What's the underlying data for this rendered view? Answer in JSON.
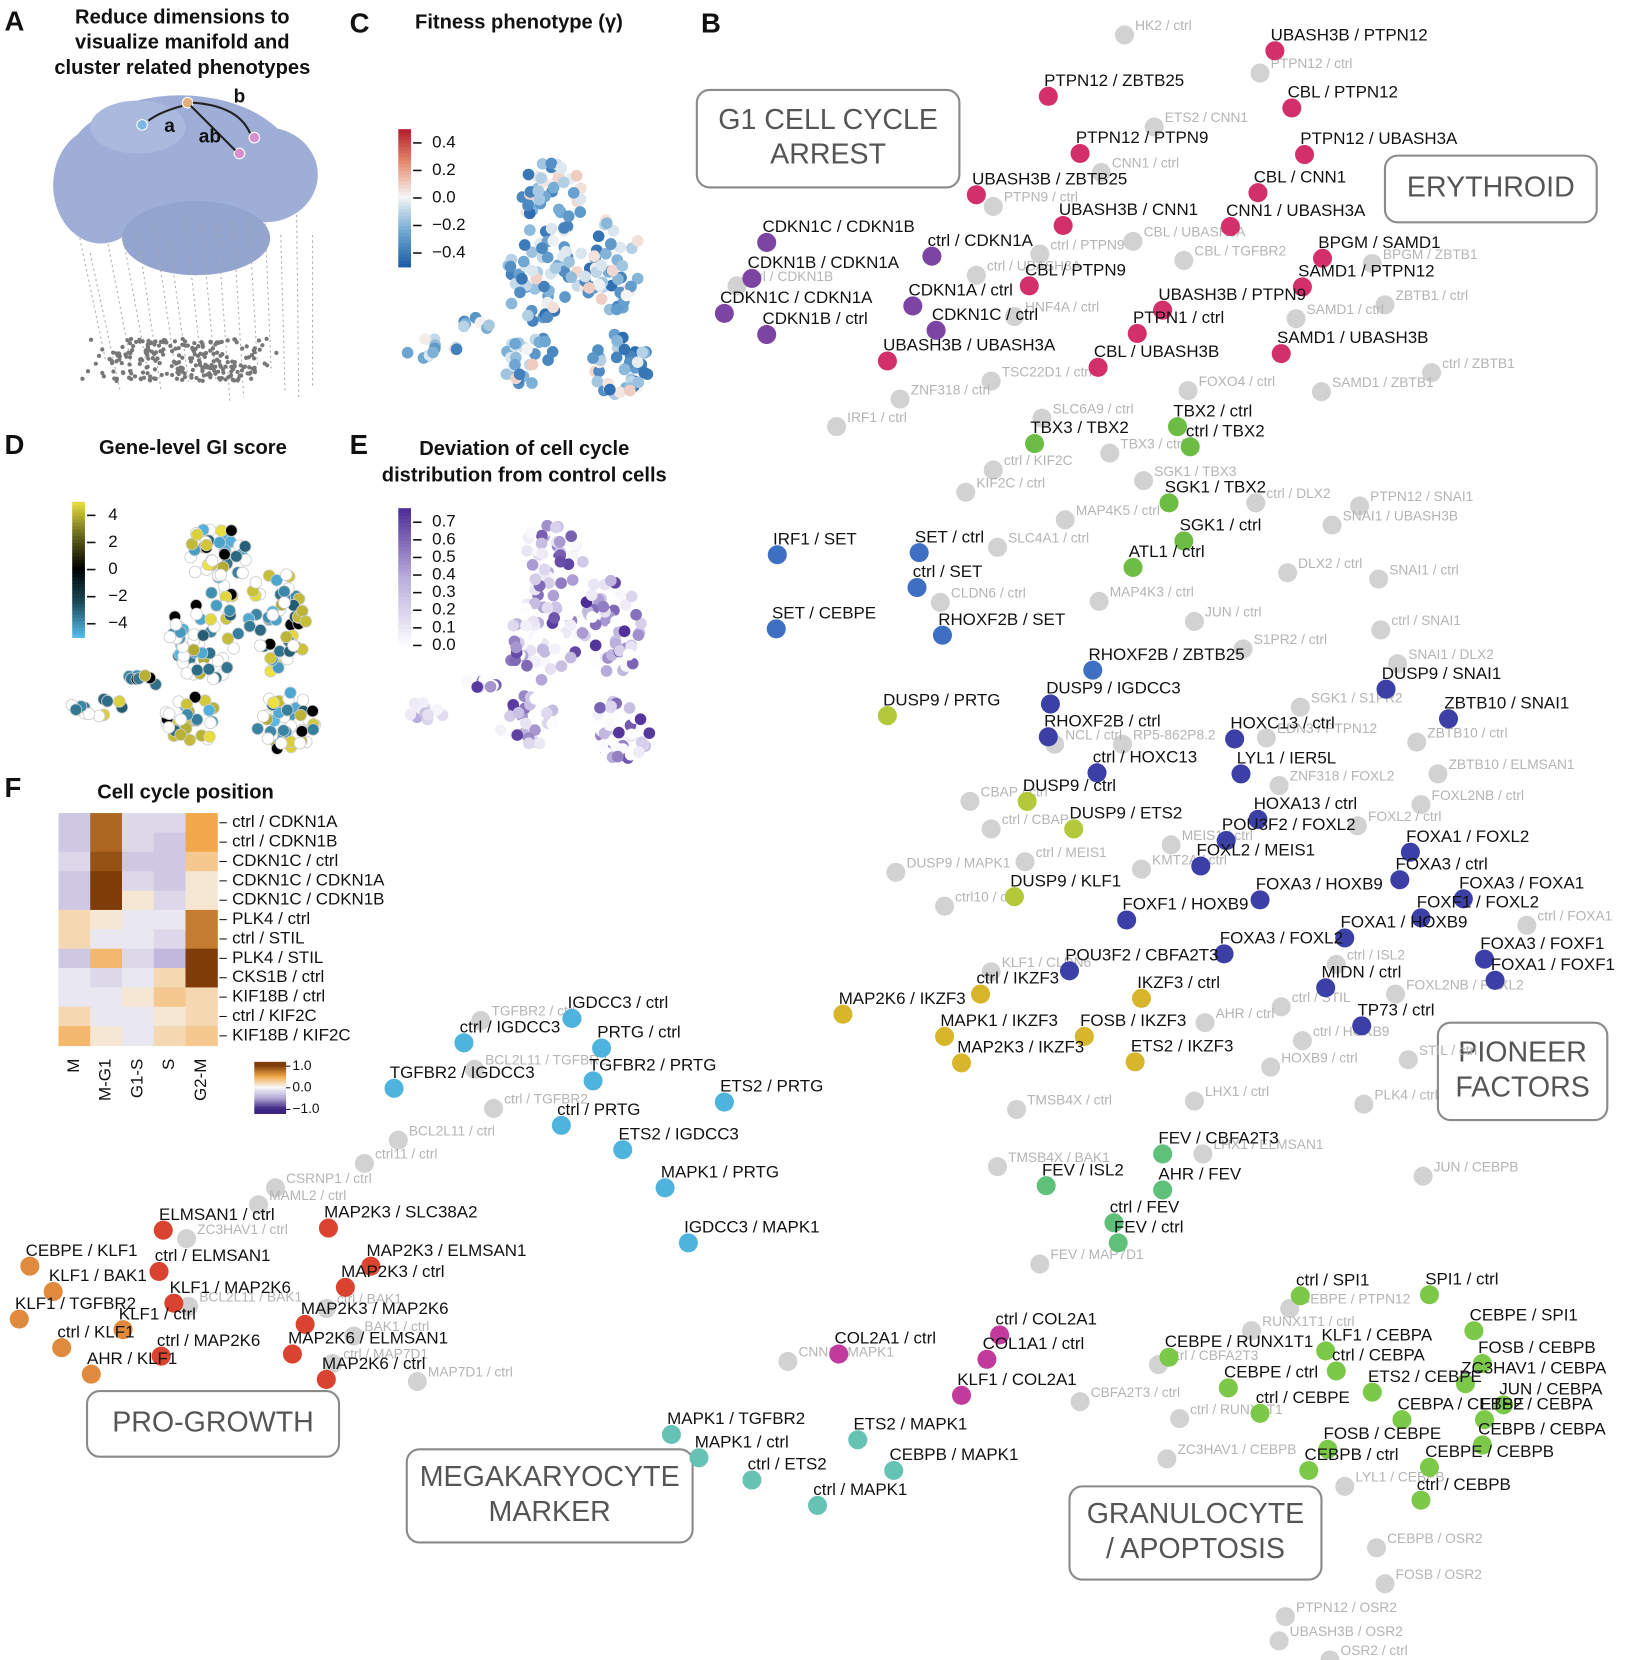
{
  "panels": {
    "A": {
      "letter": "A",
      "title": [
        "Reduce dimensions to",
        "visualize manifold and",
        "cluster related phenotypes"
      ],
      "points": [
        "a",
        "b",
        "ab"
      ]
    },
    "B": {
      "letter": "B",
      "clusters": [
        {
          "lines": [
            "G1 CELL CYCLE",
            "ARREST"
          ]
        },
        {
          "lines": [
            "ERYTHROID"
          ]
        },
        {
          "lines": [
            "PIONEER",
            "FACTORS"
          ]
        },
        {
          "lines": [
            "PRO-GROWTH"
          ]
        },
        {
          "lines": [
            "MEGAKARYOCYTE",
            "MARKER"
          ]
        },
        {
          "lines": [
            "GRANULOCYTE",
            "/ APOPTOSIS"
          ]
        }
      ],
      "groups": [
        {
          "color": "#d3306b",
          "labels": [
            "UBASH3B / PTPN12",
            "PTPN12 / ZBTB25",
            "CBL / PTPN12",
            "PTPN12 / PTPN9",
            "PTPN12 / UBASH3A",
            "UBASH3B / ZBTB25",
            "CBL / CNN1",
            "UBASH3B / CNN1",
            "CNN1 / UBASH3A",
            "BPGM / SAMD1",
            "CBL / PTPN9",
            "SAMD1 / PTPN12",
            "UBASH3B / PTPN9",
            "PTPN1 / ctrl",
            "SAMD1 / UBASH3B",
            "UBASH3B / UBASH3A",
            "CBL / UBASH3B"
          ]
        },
        {
          "color": "#7d45a3",
          "labels": [
            "CDKN1C / CDKN1B",
            "ctrl / CDKN1A",
            "CDKN1B / CDKN1A",
            "CDKN1C / CDKN1A",
            "CDKN1A / ctrl",
            "CDKN1B / ctrl",
            "CDKN1C / ctrl"
          ]
        },
        {
          "color": "#6dbd45",
          "labels": [
            "TBX2 / ctrl",
            "TBX3 / TBX2",
            "ctrl / TBX2",
            "SGK1 / TBX2",
            "SGK1 / ctrl",
            "ATL1 / ctrl"
          ]
        },
        {
          "color": "#3f6fc2",
          "labels": [
            "IRF1 / SET",
            "SET / ctrl",
            "ctrl / SET",
            "SET / CEBPE",
            "RHOXF2B / SET",
            "RHOXF2B / ZBTB25"
          ]
        },
        {
          "color": "#3b3fa6",
          "labels": [
            "DUSP9 / SNAI1",
            "DUSP9 / IGDCC3",
            "ZBTB10 / SNAI1",
            "RHOXF2B / ctrl",
            "HOXC13 / ctrl",
            "ctrl / HOXC13",
            "LYL1 / IER5L",
            "HOXA13 / ctrl",
            "POU3F2 / FOXL2",
            "FOXA1 / FOXL2",
            "FOXL2 / MEIS1",
            "FOXA3 / ctrl",
            "FOXA3 / HOXB9",
            "FOXA3 / FOXA1",
            "FOXF1 / HOXB9",
            "FOXF1 / FOXL2",
            "FOXA1 / HOXB9",
            "FOXA3 / FOXL2",
            "FOXA3 / FOXF1",
            "POU3F2 / CBFA2T3",
            "MIDN / ctrl",
            "FOXA1 / FOXF1",
            "TP73 / ctrl"
          ]
        },
        {
          "color": "#b3c93a",
          "labels": [
            "DUSP9 / PRTG",
            "DUSP9 / ctrl",
            "DUSP9 / ETS2",
            "DUSP9 / KLF1"
          ]
        },
        {
          "color": "#d8b62c",
          "labels": [
            "ctrl / IKZF3",
            "IKZF3 / ctrl",
            "MAP2K6 / IKZF3",
            "MAPK1 / IKZF3",
            "FOSB / IKZF3",
            "MAP2K3 / IKZF3",
            "ETS2 / IKZF3"
          ]
        },
        {
          "color": "#5fc07a",
          "labels": [
            "FEV / CBFA2T3",
            "FEV / ISL2",
            "AHR / FEV",
            "ctrl / FEV",
            "FEV / ctrl"
          ]
        },
        {
          "color": "#4fb4dd",
          "labels": [
            "IGDCC3 / ctrl",
            "ctrl / IGDCC3",
            "PRTG / ctrl",
            "TGFBR2 / PRTG",
            "TGFBR2 / IGDCC3",
            "ETS2 / PRTG",
            "ctrl / PRTG",
            "ETS2 / IGDCC3",
            "MAPK1 / PRTG",
            "IGDCC3 / MAPK1"
          ]
        },
        {
          "color": "#e08a3e",
          "labels": [
            "CEBPE / KLF1",
            "KLF1 / BAK1",
            "KLF1 / TGFBR2",
            "KLF1 / ctrl",
            "ctrl / KLF1",
            "AHR / KLF1"
          ]
        },
        {
          "color": "#d9432f",
          "labels": [
            "ELMSAN1 / ctrl",
            "MAP2K3 / SLC38A2",
            "MAP2K3 / ELMSAN1",
            "ctrl / ELMSAN1",
            "MAP2K3 / ctrl",
            "KLF1 / MAP2K6",
            "MAP2K3 / MAP2K6",
            "ctrl / MAP2K6",
            "MAP2K6 / ELMSAN1",
            "MAP2K6 / ctrl"
          ]
        },
        {
          "color": "#c23a9c",
          "labels": [
            "ctrl / COL2A1",
            "COL2A1 / ctrl",
            "COL1A1 / ctrl",
            "KLF1 / COL2A1"
          ]
        },
        {
          "color": "#66c3b3",
          "labels": [
            "MAPK1 / TGFBR2",
            "ETS2 / MAPK1",
            "MAPK1 / ctrl",
            "CEBPB / MAPK1",
            "ctrl / ETS2",
            "ctrl / MAPK1"
          ]
        },
        {
          "color": "#7cc94a",
          "labels": [
            "ctrl / SPI1",
            "SPI1 / ctrl",
            "CEBPE / SPI1",
            "CEBPE / RUNX1T1",
            "KLF1 / CEBPA",
            "FOSB / CEBPB",
            "ctrl / CEBPA",
            "ZC3HAV1 / CEBPA",
            "CEBPE / ctrl",
            "ETS2 / CEBPE",
            "JUN / CEBPA",
            "ctrl / CEBPE",
            "CEBPA / CEBPE",
            "ETS2 / CEBPA",
            "FOSB / CEBPE",
            "CEBPB / CEBPA",
            "CEBPB / ctrl",
            "CEBPE / CEBPB",
            "ctrl / CEBPB"
          ]
        }
      ],
      "gray_color": "#d2d2d2",
      "gray_labels": [
        "HK2 / ctrl",
        "PTPN12 / ctrl",
        "ETS2 / CNN1",
        "CNN1 / ctrl",
        "PTPN9 / ctrl",
        "CBL / UBASH3A",
        "CBL / TGFBR2",
        "BPGM / ZBTB1",
        "ctrl / UBASH3A",
        "ctrl / CDKN1B",
        "ZBTB1 / ctrl",
        "SAMD1 / ctrl",
        "HNF4A / ctrl",
        "ctrl / ZBTB1",
        "TSC22D1 / ctrl",
        "FOXO4 / ctrl",
        "SAMD1 / ZBTB1",
        "ZNF318 / ctrl",
        "SLC6A9 / ctrl",
        "IRF1 / ctrl",
        "TBX3 / ctrl",
        "ctrl / KIF2C",
        "SGK1 / TBX3",
        "KIF2C / ctrl",
        "ctrl / DLX2",
        "PTPN12 / SNAI1",
        "MAP4K5 / ctrl",
        "SNAI1 / UBASH3B",
        "SLC4A1 / ctrl",
        "DLX2 / ctrl",
        "SNAI1 / ctrl",
        "CLDN6 / ctrl",
        "MAP4K3 / ctrl",
        "JUN / ctrl",
        "ctrl / SNAI1",
        "S1PR2 / ctrl",
        "SNAI1 / DLX2",
        "SGK1 / S1PR2",
        "ZBTB10 / ctrl",
        "NCL / ctrl",
        "RP5-862P8.2",
        "EDN3 / PTPN12",
        "ZBTB10 / ELMSAN1",
        "ZNF318 / FOXL2",
        "CBAP / ctrl",
        "FOXL2NB / ctrl",
        "ctrl / CBAP",
        "FOXL2 / ctrl",
        "MEIS1 / ctrl",
        "ctrl / MEIS1",
        "DUSP9 / MAPK1",
        "KMT2A / ctrl",
        "ctrl10 / ctrl",
        "ctrl / FOXA1",
        "KLF1 / CLDN6",
        "ctrl / ISL2",
        "FOXL2NB / FOXL2",
        "ctrl / STIL",
        "AHR / ctrl",
        "ctrl / HOXB9",
        "HOXB9 / ctrl",
        "STIL / ctrl",
        "LHX1 / ctrl",
        "PLK4 / ctrl",
        "TMSB4X / ctrl",
        "TMSB4X / BAK1",
        "LHX1 / ELMSAN1",
        "JUN / CEBPB",
        "FEV / MAP7D1",
        "CEBPE / PTPN12",
        "RUNX1T1 / ctrl",
        "ctrl / CBFA2T3",
        "CNN1 / MAPK1",
        "CBFA2T3 / ctrl",
        "ctrl / RUNX1T1",
        "ZC3HAV1 / CEBPB",
        "LYL1 / CEBPB",
        "CEBPB / OSR2",
        "FOSB / OSR2",
        "PTPN12 / OSR2",
        "UBASH3B / OSR2",
        "OSR2 / ctrl",
        "TGFBR2 / ctrl",
        "BCL2L11 / ctrl",
        "ctrl11 / ctrl",
        "CSRNP1 / ctrl",
        "MAML2 / ctrl",
        "ZC3HAV1 / ctrl",
        "BCL2L11 / BAK1",
        "BAK1 / ctrl",
        "ctrl / MAP7D1",
        "MAP7D1 / ctrl",
        "ctrl / BAK1",
        "ctrl / TGFBR2",
        "BCL2L11 / TGFBR2",
        "ctrl / PTPN9"
      ]
    },
    "C": {
      "letter": "C",
      "title": "Fitness phenotype (γ)",
      "colorbar_ticks": [
        0.4,
        0.2,
        {
          "value": 0,
          "label": "0.0"
        },
        {
          "value": -0.2,
          "label": "−0.2"
        },
        {
          "value": -0.4,
          "label": "−0.4"
        }
      ]
    },
    "D": {
      "letter": "D",
      "title": "Gene-level GI score",
      "colorbar_ticks": [
        4,
        2,
        0,
        {
          "value": -2,
          "label": "−2"
        },
        {
          "value": -4,
          "label": "−4"
        }
      ]
    },
    "E": {
      "letter": "E",
      "title": [
        "Deviation of cell cycle",
        "distribution from control cells"
      ],
      "colorbar_ticks": [
        0.7,
        0.6,
        0.5,
        0.4,
        0.3,
        0.2,
        0.1,
        {
          "value": 0,
          "label": "0.0"
        }
      ]
    },
    "F": {
      "letter": "F",
      "title": "Cell cycle position",
      "columns": [
        "M",
        "M-G1",
        "G1-S",
        "S",
        "G2-M"
      ],
      "rows": [
        "ctrl / CDKN1A",
        "ctrl / CDKN1B",
        "CDKN1C / ctrl",
        "CDKN1C / CDKN1A",
        "CDKN1C / CDKN1B",
        "PLK4 / ctrl",
        "ctrl / STIL",
        "PLK4 / STIL",
        "CKS1B / ctrl",
        "KIF18B / ctrl",
        "ctrl / KIF2C",
        "KIF18B / KIF2C"
      ],
      "values": [
        [
          -0.3,
          0.8,
          -0.2,
          -0.2,
          0.5
        ],
        [
          -0.3,
          0.8,
          -0.2,
          -0.3,
          0.5
        ],
        [
          -0.2,
          0.9,
          -0.3,
          -0.3,
          0.3
        ],
        [
          -0.3,
          1.0,
          -0.2,
          -0.3,
          0.1
        ],
        [
          -0.3,
          1.0,
          0.1,
          -0.2,
          0.1
        ],
        [
          0.2,
          0.1,
          -0.1,
          -0.1,
          0.7
        ],
        [
          0.2,
          -0.1,
          -0.1,
          -0.2,
          0.7
        ],
        [
          -0.3,
          0.4,
          -0.2,
          -0.4,
          1.0
        ],
        [
          -0.1,
          -0.2,
          -0.1,
          0.2,
          1.0
        ],
        [
          -0.1,
          -0.1,
          0.1,
          0.3,
          0.2
        ],
        [
          0.2,
          -0.1,
          -0.1,
          0.1,
          0.2
        ],
        [
          0.4,
          0.1,
          -0.1,
          0.2,
          0.3
        ]
      ],
      "colorbar_ticks": [
        {
          "value": 1,
          "label": "1.0"
        },
        {
          "value": 0,
          "label": "0.0"
        },
        {
          "value": -1,
          "label": "−1.0"
        }
      ]
    }
  }
}
